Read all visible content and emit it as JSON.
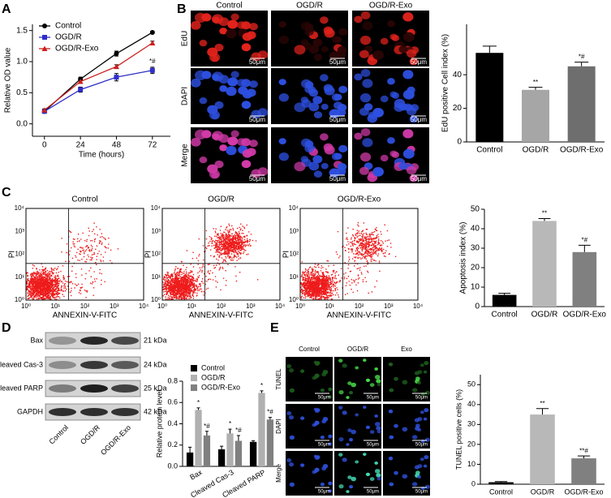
{
  "panel_letters": [
    "A",
    "B",
    "C",
    "D",
    "E"
  ],
  "chart_data": [
    {
      "type": "line",
      "xlabel": "Time (hours)",
      "ylabel": "Relative OD value",
      "x": [
        0,
        24,
        48,
        72
      ],
      "xlim": [
        -8,
        84
      ],
      "xticks": [
        0,
        24,
        48,
        72
      ],
      "ylim": [
        -0.2,
        1.6
      ],
      "yticks": [
        {
          "value": 0,
          "label": "0.0"
        },
        {
          "value": 0.5,
          "label": "0.5"
        },
        {
          "value": 1,
          "label": "1.0"
        },
        {
          "value": 1.5,
          "label": "1.5"
        }
      ],
      "legend": "upper left",
      "series": [
        {
          "name": "Control",
          "color": "#000000",
          "marker": "circle",
          "values": [
            0.2,
            0.72,
            1.13,
            1.47
          ],
          "errors": [
            0.02,
            0.03,
            0.04,
            0.02
          ]
        },
        {
          "name": "OGD/R",
          "color": "#2f2fc8",
          "marker": "square",
          "values": [
            0.2,
            0.55,
            0.75,
            0.86
          ],
          "errors": [
            0.02,
            0.04,
            0.06,
            0.05
          ],
          "labels": [
            null,
            null,
            null,
            "*#"
          ]
        },
        {
          "name": "OGD/R-Exo",
          "color": "#cc1f1f",
          "marker": "triangle",
          "values": [
            0.22,
            0.68,
            0.92,
            1.3
          ],
          "errors": [
            0.02,
            0.03,
            0.03,
            0.03
          ]
        }
      ]
    },
    {
      "type": "bar",
      "ylabel": "EdU positive Cell index (%)",
      "categories": [
        "Control",
        "OGD/R",
        "OGD/R-Exo"
      ],
      "values": [
        53,
        31,
        45
      ],
      "errors": [
        4,
        1.5,
        2.5
      ],
      "labels": [
        null,
        "**",
        "*#"
      ],
      "colors": [
        "#000000",
        "#a6a6a6",
        "#6e6e6e"
      ],
      "ylim": [
        0,
        70
      ],
      "yticks": [
        0,
        20,
        40
      ]
    },
    {
      "type": "bar",
      "ylabel": "Apoptosis index (%)",
      "categories": [
        "Control",
        "OGD/R",
        "OGD/R-Exo"
      ],
      "values": [
        6,
        44,
        28
      ],
      "errors": [
        0.8,
        1.2,
        3.5
      ],
      "labels": [
        null,
        "**",
        "*#"
      ],
      "colors": [
        "#000000",
        "#b8b8b8",
        "#808080"
      ],
      "ylim": [
        0,
        50
      ],
      "yticks": [
        0,
        10,
        20,
        30,
        40,
        50
      ]
    },
    {
      "type": "bar",
      "ylabel": "Relative protein level",
      "categories": [
        "Bax",
        "Cleaved Cas-3",
        "Cleaved PARP"
      ],
      "legend": "upper left",
      "series": [
        {
          "name": "Control",
          "color": "#000000",
          "values": [
            0.13,
            0.16,
            0.23
          ],
          "errors": [
            0.05,
            0.03,
            0.01
          ]
        },
        {
          "name": "OGD/R",
          "color": "#b0b0b0",
          "values": [
            0.53,
            0.31,
            0.69
          ],
          "errors": [
            0.02,
            0.04,
            0.02
          ],
          "labels": [
            "*",
            "*",
            "*"
          ]
        },
        {
          "name": "OGD/R-Exo",
          "color": "#808080",
          "values": [
            0.29,
            0.24,
            0.44
          ],
          "errors": [
            0.04,
            0.05,
            0.02
          ],
          "labels": [
            "*#",
            "*#",
            "*#"
          ]
        }
      ],
      "ylim": [
        0,
        0.8
      ],
      "yticks": [
        {
          "value": 0,
          "label": "0.0"
        },
        {
          "value": 0.2,
          "label": "0.2"
        },
        {
          "value": 0.4,
          "label": "0.4"
        },
        {
          "value": 0.6,
          "label": "0.6"
        },
        {
          "value": 0.8,
          "label": "0.8"
        }
      ]
    },
    {
      "type": "bar",
      "ylabel": "TUNEL positive cells (%)",
      "categories": [
        "Control",
        "OGD/R",
        "OGD/R-Exo"
      ],
      "values": [
        1,
        35,
        13
      ],
      "errors": [
        0.3,
        3,
        1.2
      ],
      "labels": [
        null,
        "**",
        "**#"
      ],
      "colors": [
        "#000000",
        "#b8b8b8",
        "#808080"
      ],
      "ylim": [
        0,
        55
      ],
      "yticks": [
        0,
        10,
        20,
        30,
        40,
        50
      ]
    }
  ],
  "edu_images": {
    "columns": [
      "Control",
      "OGD/R",
      "OGD/R-Exo"
    ],
    "rows": [
      "EdU",
      "DAPI",
      "Merge"
    ],
    "scale_bar": "50μm"
  },
  "flow": {
    "titles": [
      "Control",
      "OGD/R",
      "OGD/R-Exo"
    ],
    "xlabel": "ANNEXIN-V-FITC",
    "ylabel": "PI",
    "ticks": [
      "10⁰",
      "10¹",
      "10²",
      "10³",
      "10⁴"
    ]
  },
  "blot": {
    "proteins": [
      {
        "name": "Bax",
        "size": "21 kDa"
      },
      {
        "name": "Cleaved Cas-3",
        "size": "24 kDa"
      },
      {
        "name": "Cleaved PARP",
        "size": "25 kDa"
      },
      {
        "name": "GAPDH",
        "size": "42 kDa"
      }
    ],
    "lanes": [
      "Control",
      "OGD/R",
      "OGD/R-Exo"
    ]
  },
  "tunel_images": {
    "columns": [
      "Control",
      "OGD/R",
      "Exo"
    ],
    "rows": [
      "TUNEL",
      "DAPI",
      "Merge"
    ],
    "scale_bar": "50μm"
  }
}
